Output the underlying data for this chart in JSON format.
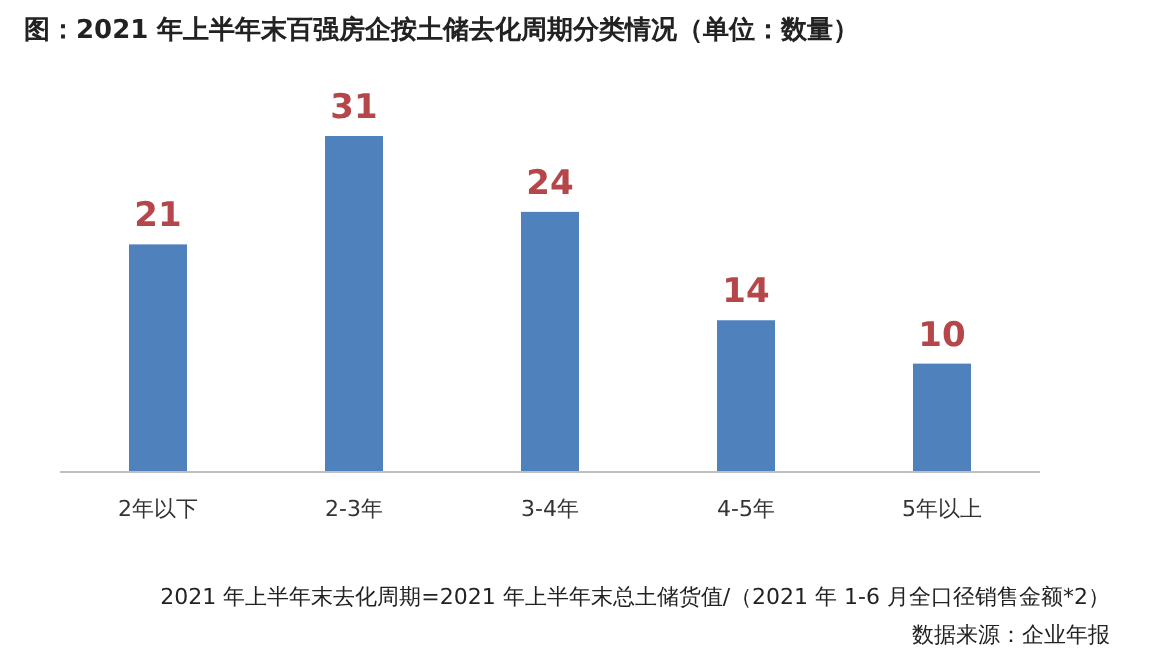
{
  "chart_data": {
    "type": "bar",
    "title": "图：2021 年上半年末百强房企按土储去化周期分类情况（单位：数量）",
    "categories": [
      "2年以下",
      "2-3年",
      "3-4年",
      "4-5年",
      "5年以上"
    ],
    "values": [
      21,
      31,
      24,
      14,
      10
    ],
    "color": "#4f81bd",
    "data_labels": true,
    "annotations": [
      "2021 年上半年末去化周期=2021 年上半年末总土储货值/（2021 年 1-6 月全口径销售金额*2）",
      "数据来源：企业年报"
    ]
  }
}
